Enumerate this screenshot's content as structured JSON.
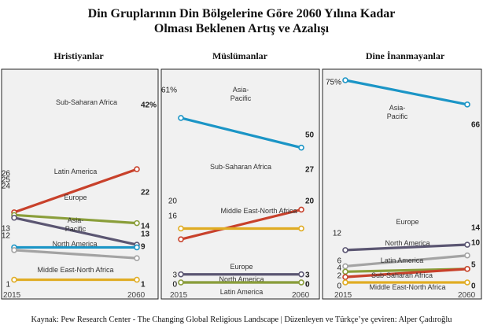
{
  "header": {
    "title_line1": "Din Gruplarının Din Bölgelerine Göre 2060 Yılına Kadar",
    "title_line2": "Olması Beklenen Artış ve Azalışı"
  },
  "source": "Kaynak: Pew Research Center - The Changing Global Religious Landscape | Düzenleyen ve Türkçe’ye çeviren: Alper Çadıroğlu",
  "colors": {
    "Sub-Saharan Africa": "#c8412b",
    "Latin America": "#8a9e3a",
    "Europe": "#5b5672",
    "Asia-Pacific": "#1b95c6",
    "North America": "#a3a3a3",
    "Middle East-North Africa": "#e0ac23"
  },
  "chart_data": [
    {
      "type": "line",
      "title": "Hristiyanlar",
      "x": [
        "2015",
        "2060"
      ],
      "series": [
        {
          "name": "Sub-Saharan Africa",
          "values": [
            26,
            42
          ],
          "start_label": "26",
          "end_label": "42%"
        },
        {
          "name": "Latin America",
          "values": [
            25,
            22
          ],
          "start_label": "25",
          "end_label": "22"
        },
        {
          "name": "Europe",
          "values": [
            24,
            14
          ],
          "start_label": "24",
          "end_label": "14"
        },
        {
          "name": "Asia-Pacific",
          "values": [
            13,
            13
          ],
          "start_label": "13",
          "end_label": "13"
        },
        {
          "name": "North America",
          "values": [
            12,
            9
          ],
          "start_label": "12",
          "end_label": "9"
        },
        {
          "name": "Middle East-North Africa",
          "values": [
            1,
            1
          ],
          "start_label": "1",
          "end_label": "1"
        }
      ]
    },
    {
      "type": "line",
      "title": "Müslümanlar",
      "x": [
        "2015",
        "2060"
      ],
      "series": [
        {
          "name": "Asia-Pacific",
          "values": [
            61,
            50
          ],
          "start_label": "61%",
          "end_label": "50"
        },
        {
          "name": "Sub-Saharan Africa",
          "values": [
            16,
            27
          ],
          "start_label": "16",
          "end_label": "27"
        },
        {
          "name": "Middle East-North Africa",
          "values": [
            20,
            20
          ],
          "start_label": "20",
          "end_label": "20"
        },
        {
          "name": "Europe",
          "values": [
            3,
            3
          ],
          "start_label": "3",
          "end_label": "3"
        },
        {
          "name": "North America",
          "values": [
            0,
            0
          ],
          "start_label": "0",
          "end_label": "0"
        },
        {
          "name": "Latin America",
          "values": [
            0,
            0
          ],
          "start_label": "0",
          "end_label": "0"
        }
      ]
    },
    {
      "type": "line",
      "title": "Dine İnanmayanlar",
      "x": [
        "2015",
        "2060"
      ],
      "series": [
        {
          "name": "Asia-Pacific",
          "values": [
            75,
            66
          ],
          "start_label": "75%",
          "end_label": "66"
        },
        {
          "name": "Europe",
          "values": [
            12,
            14
          ],
          "start_label": "12",
          "end_label": "14"
        },
        {
          "name": "North America",
          "values": [
            6,
            10
          ],
          "start_label": "6",
          "end_label": "10"
        },
        {
          "name": "Latin America",
          "values": [
            4,
            5
          ],
          "start_label": "4",
          "end_label": "5"
        },
        {
          "name": "Sub-Saharan Africa",
          "values": [
            2,
            5
          ],
          "start_label": "2",
          "end_label": ""
        },
        {
          "name": "Middle East-North Africa",
          "values": [
            0,
            0
          ],
          "start_label": "0",
          "end_label": "0"
        }
      ]
    }
  ]
}
